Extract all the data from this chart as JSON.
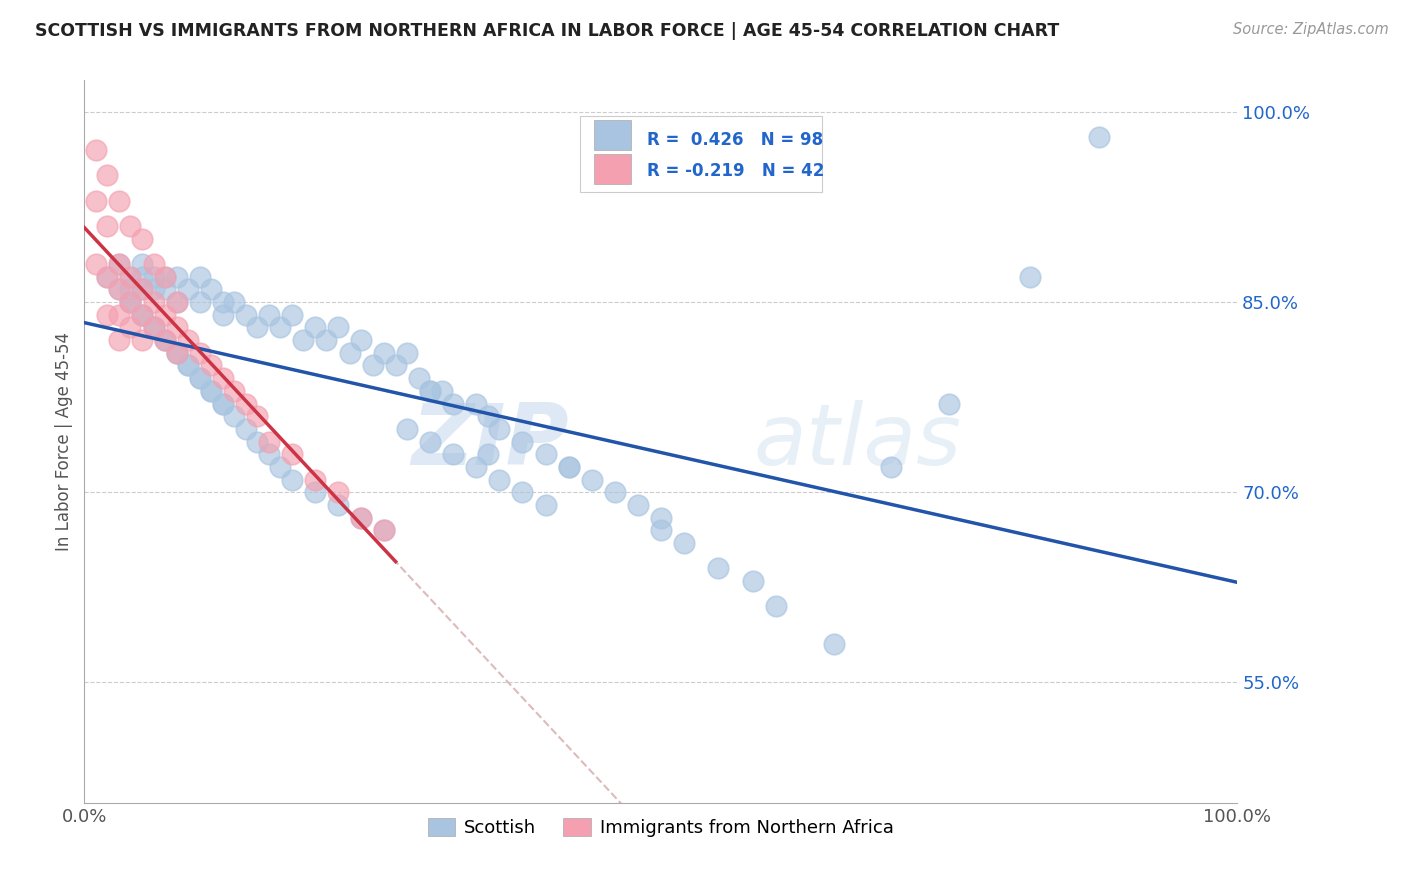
{
  "title": "SCOTTISH VS IMMIGRANTS FROM NORTHERN AFRICA IN LABOR FORCE | AGE 45-54 CORRELATION CHART",
  "source": "Source: ZipAtlas.com",
  "ylabel": "In Labor Force | Age 45-54",
  "xlim": [
    0.0,
    1.0
  ],
  "ylim": [
    0.455,
    1.025
  ],
  "yticks": [
    0.55,
    0.7,
    0.85,
    1.0
  ],
  "ytick_labels": [
    "55.0%",
    "70.0%",
    "85.0%",
    "100.0%"
  ],
  "blue_R": 0.426,
  "blue_N": 98,
  "pink_R": -0.219,
  "pink_N": 42,
  "blue_color": "#A8C4E0",
  "pink_color": "#F4A0B0",
  "blue_line_color": "#2255AA",
  "pink_line_color": "#CC3344",
  "gray_dash_color": "#DDBBBB",
  "legend_label_blue": "Scottish",
  "legend_label_pink": "Immigrants from Northern Africa",
  "watermark_zip": "ZIP",
  "watermark_atlas": "atlas",
  "blue_scatter_x": [
    0.02,
    0.03,
    0.04,
    0.04,
    0.05,
    0.05,
    0.05,
    0.06,
    0.06,
    0.07,
    0.07,
    0.08,
    0.08,
    0.09,
    0.1,
    0.1,
    0.11,
    0.12,
    0.12,
    0.13,
    0.14,
    0.15,
    0.16,
    0.17,
    0.18,
    0.19,
    0.2,
    0.21,
    0.22,
    0.23,
    0.24,
    0.25,
    0.26,
    0.27,
    0.28,
    0.29,
    0.3,
    0.31,
    0.32,
    0.34,
    0.35,
    0.36,
    0.38,
    0.4,
    0.42,
    0.44,
    0.46,
    0.48,
    0.5,
    0.52,
    0.04,
    0.05,
    0.06,
    0.07,
    0.08,
    0.09,
    0.1,
    0.11,
    0.12,
    0.13,
    0.14,
    0.15,
    0.16,
    0.17,
    0.18,
    0.2,
    0.22,
    0.24,
    0.26,
    0.28,
    0.3,
    0.32,
    0.34,
    0.36,
    0.38,
    0.4,
    0.03,
    0.04,
    0.05,
    0.06,
    0.07,
    0.08,
    0.09,
    0.1,
    0.11,
    0.12,
    0.55,
    0.6,
    0.65,
    0.42,
    0.5,
    0.58,
    0.7,
    0.75,
    0.82,
    0.88,
    0.3,
    0.35
  ],
  "blue_scatter_y": [
    0.87,
    0.88,
    0.87,
    0.86,
    0.87,
    0.86,
    0.88,
    0.87,
    0.86,
    0.87,
    0.86,
    0.87,
    0.85,
    0.86,
    0.87,
    0.85,
    0.86,
    0.85,
    0.84,
    0.85,
    0.84,
    0.83,
    0.84,
    0.83,
    0.84,
    0.82,
    0.83,
    0.82,
    0.83,
    0.81,
    0.82,
    0.8,
    0.81,
    0.8,
    0.81,
    0.79,
    0.78,
    0.78,
    0.77,
    0.77,
    0.76,
    0.75,
    0.74,
    0.73,
    0.72,
    0.71,
    0.7,
    0.69,
    0.68,
    0.66,
    0.85,
    0.84,
    0.83,
    0.82,
    0.81,
    0.8,
    0.79,
    0.78,
    0.77,
    0.76,
    0.75,
    0.74,
    0.73,
    0.72,
    0.71,
    0.7,
    0.69,
    0.68,
    0.67,
    0.75,
    0.74,
    0.73,
    0.72,
    0.71,
    0.7,
    0.69,
    0.86,
    0.85,
    0.84,
    0.83,
    0.82,
    0.81,
    0.8,
    0.79,
    0.78,
    0.77,
    0.64,
    0.61,
    0.58,
    0.72,
    0.67,
    0.63,
    0.72,
    0.77,
    0.87,
    0.98,
    0.78,
    0.73
  ],
  "pink_scatter_x": [
    0.01,
    0.01,
    0.02,
    0.02,
    0.02,
    0.03,
    0.03,
    0.03,
    0.03,
    0.04,
    0.04,
    0.04,
    0.05,
    0.05,
    0.05,
    0.06,
    0.06,
    0.07,
    0.07,
    0.08,
    0.08,
    0.09,
    0.1,
    0.11,
    0.12,
    0.13,
    0.14,
    0.15,
    0.16,
    0.18,
    0.2,
    0.22,
    0.24,
    0.26,
    0.01,
    0.02,
    0.03,
    0.04,
    0.05,
    0.06,
    0.07,
    0.08
  ],
  "pink_scatter_y": [
    0.93,
    0.88,
    0.91,
    0.87,
    0.84,
    0.88,
    0.86,
    0.84,
    0.82,
    0.87,
    0.85,
    0.83,
    0.86,
    0.84,
    0.82,
    0.85,
    0.83,
    0.84,
    0.82,
    0.83,
    0.81,
    0.82,
    0.81,
    0.8,
    0.79,
    0.78,
    0.77,
    0.76,
    0.74,
    0.73,
    0.71,
    0.7,
    0.68,
    0.67,
    0.97,
    0.95,
    0.93,
    0.91,
    0.9,
    0.88,
    0.87,
    0.85
  ]
}
